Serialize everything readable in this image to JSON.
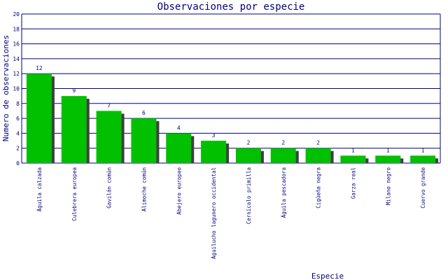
{
  "chart_data": {
    "type": "bar",
    "title": "Observaciones por especie",
    "xlabel": "Especie",
    "ylabel": "Numero de observaciones",
    "ylim": [
      0,
      20
    ],
    "yticks": [
      0,
      2,
      4,
      6,
      8,
      10,
      12,
      14,
      16,
      18,
      20
    ],
    "grid": true,
    "categories": [
      "Águila calzada",
      "Culebrera europea",
      "Gavilán común",
      "Alimoche común",
      "Abejero europeo",
      "Aguilucho lagunero occidental",
      "Cernícalo primilla",
      "Águila pescadora",
      "Cigüeña negra",
      "Garza real",
      "Milano negro",
      "Cuervo grande"
    ],
    "values": [
      12,
      9,
      7,
      6,
      4,
      3,
      2,
      2,
      2,
      1,
      1,
      1
    ],
    "colors": {
      "bar": "#00c000",
      "shadow": "#404040",
      "grid": "#000080",
      "text": "#000080"
    }
  }
}
